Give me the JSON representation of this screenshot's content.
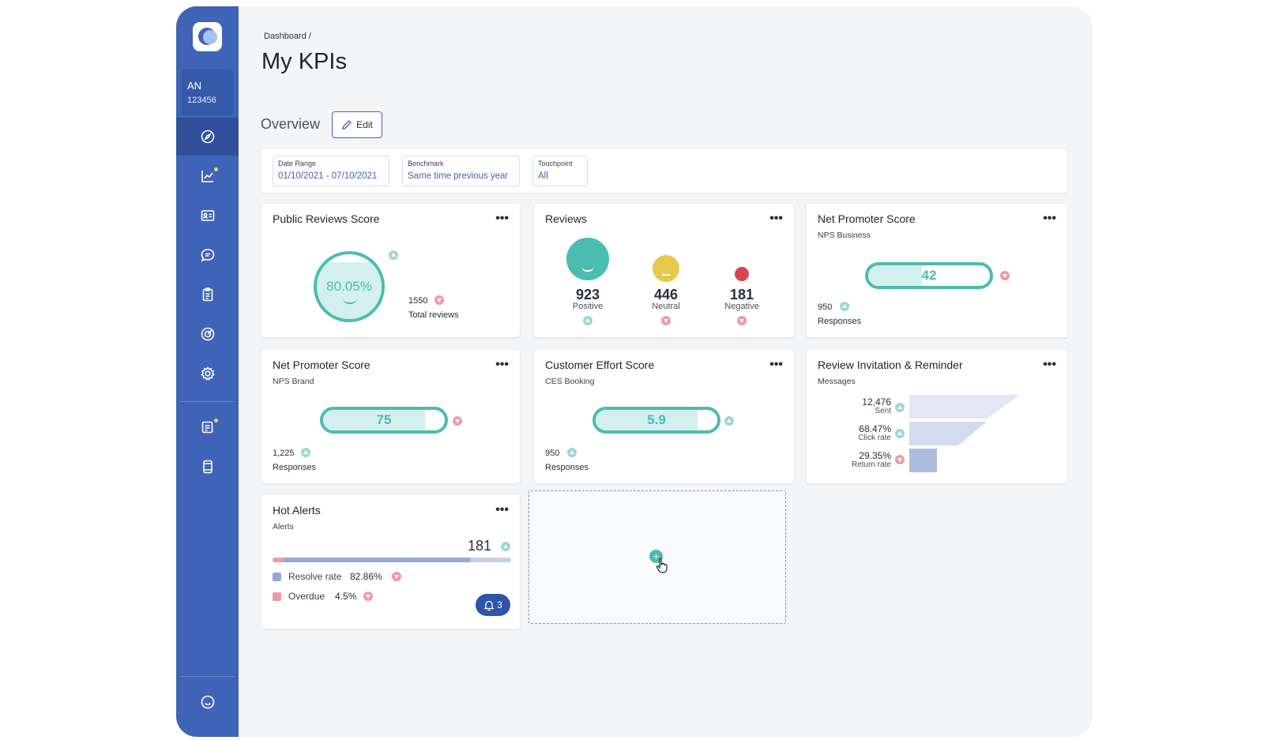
{
  "breadcrumb": "Dashboard /",
  "page_title": "My KPIs",
  "account": {
    "initials": "AN",
    "id": "123456"
  },
  "sidebar_icons": [
    "compass-icon",
    "chart-line-icon",
    "id-card-icon",
    "chat-bubble-icon",
    "clipboard-icon",
    "target-icon",
    "gear-icon",
    "notes-icon",
    "device-icon",
    "smiley-icon"
  ],
  "overview": {
    "label": "Overview",
    "edit_label": "Edit"
  },
  "filters": {
    "date_range": {
      "label": "Date Range",
      "value": "01/10/2021 - 07/10/2021"
    },
    "benchmark": {
      "label": "Benchmark",
      "value": "Same time previous year"
    },
    "touchpoint": {
      "label": "Touchpoint",
      "value": "All"
    }
  },
  "colors": {
    "brand": "#3f64b7",
    "teal": "#4bbcb1",
    "yellow": "#e7c84b",
    "red": "#d94452"
  },
  "cards": {
    "public_reviews": {
      "title": "Public Reviews Score",
      "score": "80.05%",
      "total": "1550",
      "total_label": "Total reviews",
      "score_trend": "up",
      "total_trend": "down"
    },
    "reviews": {
      "title": "Reviews",
      "items": [
        {
          "value": "923",
          "label": "Positive",
          "trend": "up"
        },
        {
          "value": "446",
          "label": "Neutral",
          "trend": "down"
        },
        {
          "value": "181",
          "label": "Negative",
          "trend": "down"
        }
      ]
    },
    "nps_business": {
      "title": "Net Promoter Score",
      "subtitle": "NPS Business",
      "score": "42",
      "fill": 0.44,
      "responses": "950",
      "responses_label": "Responses",
      "score_trend": "down",
      "responses_trend": "up"
    },
    "nps_brand": {
      "title": "Net Promoter Score",
      "subtitle": "NPS Brand",
      "score": "75",
      "fill": 0.84,
      "responses": "1,225",
      "responses_label": "Responses",
      "score_trend": "down",
      "responses_trend": "up"
    },
    "ces": {
      "title": "Customer Effort Score",
      "subtitle": "CES Booking",
      "score": "5.9",
      "fill": 0.84,
      "responses": "950",
      "responses_label": "Responses",
      "score_trend": "up",
      "responses_trend": "up"
    },
    "invitations": {
      "title": "Review Invitation & Reminder",
      "subtitle": "Messages",
      "rows": [
        {
          "value": "12,476",
          "label": "Sent",
          "trend": "up"
        },
        {
          "value": "68.47%",
          "label": "Click rate",
          "trend": "up"
        },
        {
          "value": "29.35%",
          "label": "Return rate",
          "trend": "down"
        }
      ]
    },
    "hot_alerts": {
      "title": "Hot Alerts",
      "subtitle": "Alerts",
      "total": "181",
      "resolve_label": "Resolve rate",
      "resolve_value": "82.86%",
      "resolve_fraction": 0.8286,
      "overdue_label": "Overdue",
      "overdue_value": "4.5%",
      "overdue_fraction": 0.045,
      "notifications": "3"
    }
  }
}
